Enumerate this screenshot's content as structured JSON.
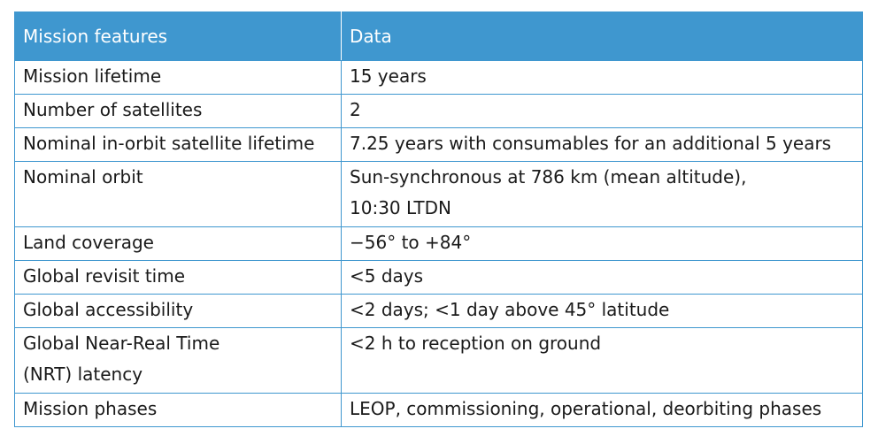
{
  "table": {
    "headers": [
      "Mission features",
      "Data"
    ],
    "rows": [
      {
        "feature": [
          "Mission lifetime"
        ],
        "data": [
          "15 years"
        ]
      },
      {
        "feature": [
          "Number of satellites"
        ],
        "data": [
          "2"
        ]
      },
      {
        "feature": [
          "Nominal in-orbit satellite lifetime"
        ],
        "data": [
          "7.25 years with consumables for an additional 5 years"
        ]
      },
      {
        "feature": [
          "Nominal orbit"
        ],
        "data": [
          "Sun-synchronous at 786 km (mean altitude),",
          "10:30 LTDN"
        ]
      },
      {
        "feature": [
          "Land coverage"
        ],
        "data": [
          "−56° to +84°"
        ]
      },
      {
        "feature": [
          "Global revisit time"
        ],
        "data": [
          "<5 days"
        ]
      },
      {
        "feature": [
          "Global accessibility"
        ],
        "data": [
          "<2 days; <1 day above 45° latitude"
        ]
      },
      {
        "feature": [
          "Global Near-Real Time",
          "(NRT) latency"
        ],
        "data": [
          "<2 h to reception on ground"
        ]
      },
      {
        "feature": [
          "Mission phases"
        ],
        "data": [
          "LEOP, commissioning, operational, deorbiting phases"
        ]
      }
    ]
  },
  "colors": {
    "header_bg": "#3f97cf",
    "border": "#3f97cf",
    "header_text": "#ffffff"
  }
}
